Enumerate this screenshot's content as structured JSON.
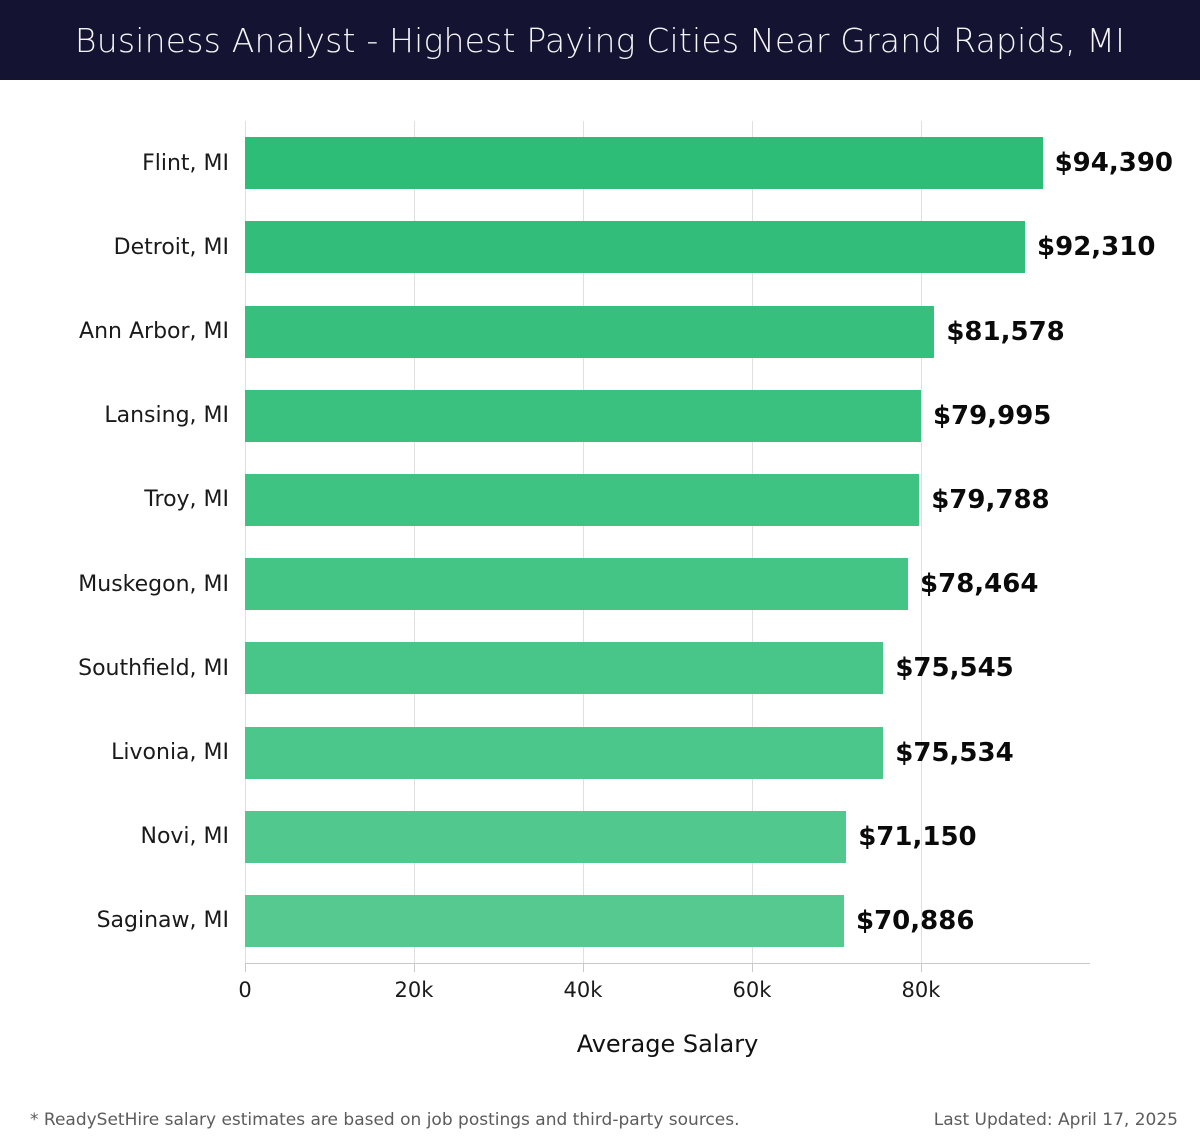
{
  "header": {
    "title": "Business Analyst - Highest Paying Cities Near Grand Rapids, MI"
  },
  "chart_data": {
    "type": "bar",
    "orientation": "horizontal",
    "title": "Business Analyst - Highest Paying Cities Near Grand Rapids, MI",
    "categories": [
      "Flint, MI",
      "Detroit, MI",
      "Ann Arbor, MI",
      "Lansing, MI",
      "Troy, MI",
      "Muskegon, MI",
      "Southfield, MI",
      "Livonia, MI",
      "Novi, MI",
      "Saginaw, MI"
    ],
    "values": [
      94390,
      92310,
      81578,
      79995,
      79788,
      78464,
      75545,
      75534,
      71150,
      70886
    ],
    "value_labels": [
      "$94,390",
      "$92,310",
      "$81,578",
      "$79,995",
      "$79,788",
      "$78,464",
      "$75,545",
      "$75,534",
      "$71,150",
      "$70,886"
    ],
    "bar_colors": [
      "#2EBD77",
      "#32BE7A",
      "#37C07D",
      "#3BC17F",
      "#3FC382",
      "#44C485",
      "#48C588",
      "#4CC78B",
      "#51C88D",
      "#55C990"
    ],
    "xlabel": "Average Salary",
    "ylabel": "",
    "xlim": [
      0,
      100000
    ],
    "xticks": [
      {
        "value": 0,
        "label": "0"
      },
      {
        "value": 20000,
        "label": "20k"
      },
      {
        "value": 40000,
        "label": "40k"
      },
      {
        "value": 60000,
        "label": "60k"
      },
      {
        "value": 80000,
        "label": "80k"
      }
    ],
    "grid": true,
    "legend": false
  },
  "footer": {
    "note": "* ReadySetHire salary estimates are based on job postings and third-party sources.",
    "last_updated": "Last Updated: April 17, 2025"
  },
  "colors": {
    "header_bg": "#141331",
    "header_text": "#f5f5f7",
    "gridline": "#e0e0e0",
    "axis": "#c9c9c9",
    "label_text": "#1a1a1a",
    "value_text": "#0a0a0a",
    "footer_text": "#5c5c5c"
  }
}
